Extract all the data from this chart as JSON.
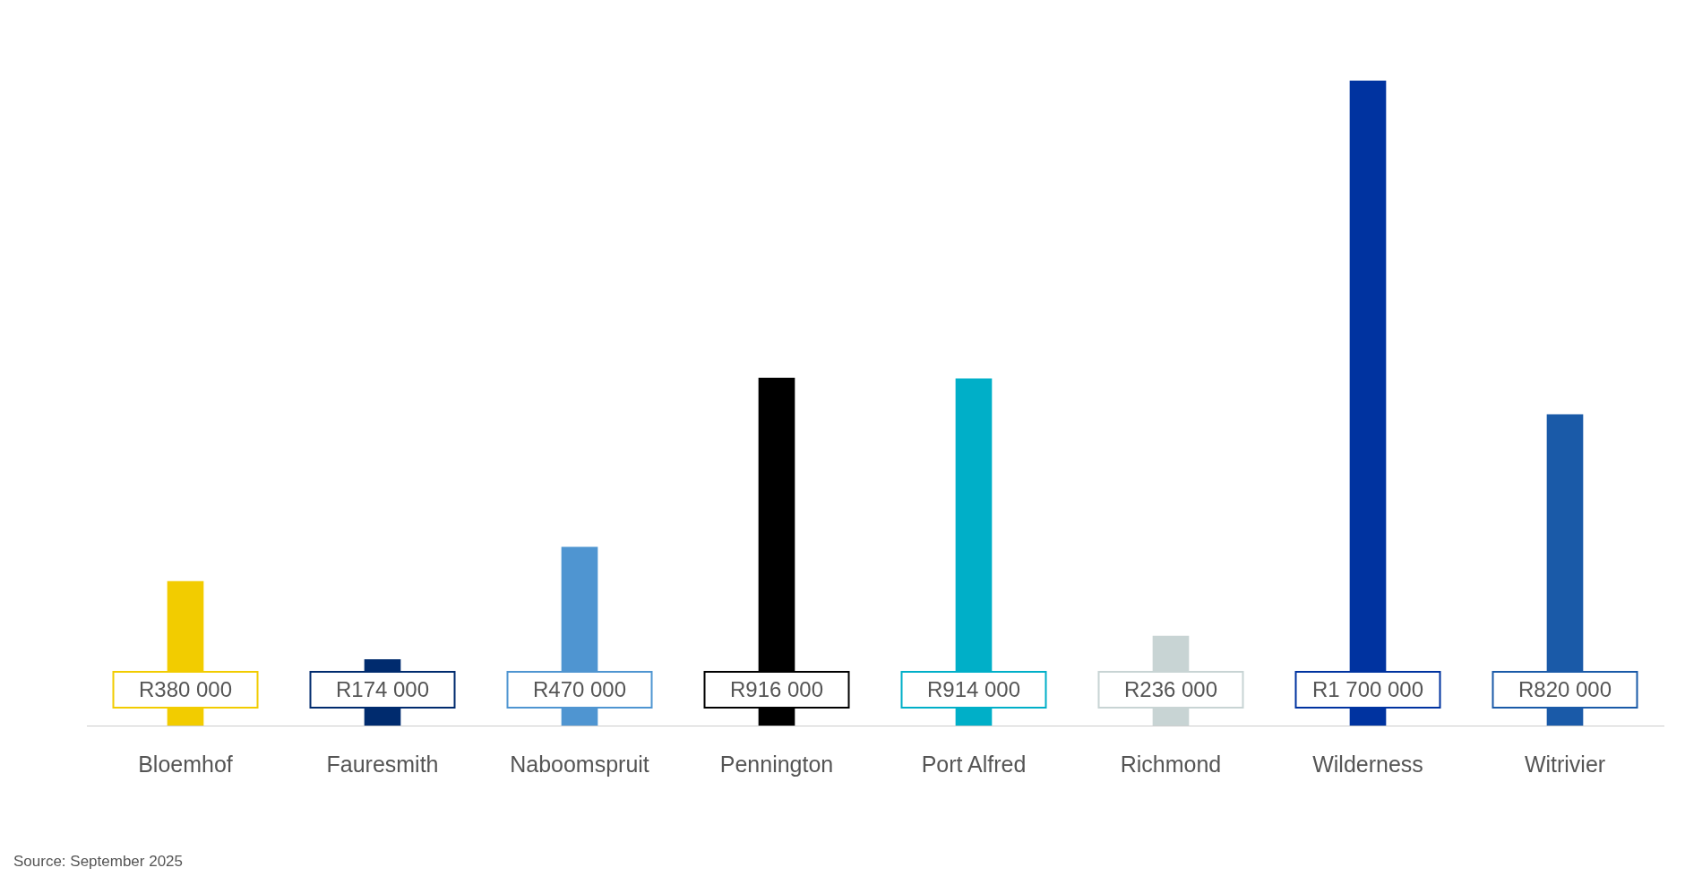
{
  "chart_data": {
    "type": "bar",
    "categories": [
      "Bloemhof",
      "Fauresmith",
      "Naboomspruit",
      "Pennington",
      "Port Alfred",
      "Richmond",
      "Wilderness",
      "Witrivier"
    ],
    "values": [
      380000,
      174000,
      470000,
      916000,
      914000,
      236000,
      1700000,
      820000
    ],
    "colors": [
      "#f2cc00",
      "#002b6e",
      "#4f95d1",
      "#000000",
      "#00afc8",
      "#c8d4d4",
      "#0033a0",
      "#1a5aa8"
    ],
    "value_labels": [
      "R380 000",
      "R174 000",
      "R470 000",
      "R916 000",
      "R914 000",
      "R236 000",
      "R1 700 000",
      "R820 000"
    ],
    "annotations": [
      "Source: September 2025"
    ]
  }
}
